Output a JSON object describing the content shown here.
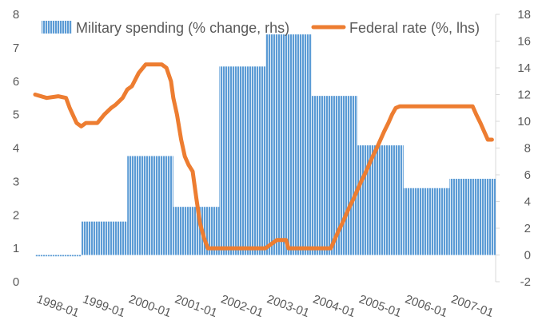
{
  "chart_data": {
    "type": "bar",
    "title": "",
    "colors": {
      "bars": "#5B9BD5",
      "bar_stripe": "#ffffff",
      "line": "#ED7D31",
      "axis_text": "#595959",
      "axis_line": "#D9D9D9"
    },
    "x_labels": [
      "1998-01",
      "1999-01",
      "2000-01",
      "2001-01",
      "2002-01",
      "2003-01",
      "2004-01",
      "2005-01",
      "2006-01",
      "2007-01"
    ],
    "left_axis": {
      "ylim": [
        0,
        8
      ],
      "ticks": [
        "0",
        "1",
        "2",
        "3",
        "4",
        "5",
        "6",
        "7",
        "8"
      ]
    },
    "right_axis": {
      "ylim": [
        -2,
        18
      ],
      "ticks": [
        "-2",
        "0",
        "2",
        "4",
        "6",
        "8",
        "10",
        "12",
        "14",
        "16",
        "18"
      ]
    },
    "legend": [
      {
        "name": "Military spending (% change, rhs)",
        "kind": "bar"
      },
      {
        "name": "Federal rate (%, lhs)",
        "kind": "line"
      }
    ],
    "series": [
      {
        "name": "Military spending (% change, rhs)",
        "axis": "right",
        "type": "bar",
        "years": [
          1998,
          1999,
          2000,
          2001,
          2002,
          2003,
          2004,
          2005,
          2006,
          2007
        ],
        "values": [
          -0.1,
          2.5,
          7.4,
          3.6,
          14.1,
          16.5,
          11.9,
          8.2,
          5.0,
          5.7
        ]
      },
      {
        "name": "Federal rate (%, lhs)",
        "axis": "left",
        "type": "line",
        "x": [
          1998.0,
          1998.25,
          1998.5,
          1998.67,
          1998.75,
          1998.9,
          1999.0,
          1999.1,
          1999.2,
          1999.35,
          1999.5,
          1999.65,
          1999.75,
          1999.9,
          2000.0,
          2000.1,
          2000.25,
          2000.4,
          2000.5,
          2000.58,
          2000.67,
          2000.75,
          2000.85,
          2000.95,
          2001.0,
          2001.08,
          2001.17,
          2001.25,
          2001.33,
          2001.42,
          2001.5,
          2001.58,
          2001.67,
          2001.75,
          2001.83,
          2001.92,
          2002.0,
          2002.5,
          2002.75,
          2002.92,
          2003.0,
          2003.25,
          2003.45,
          2003.5,
          2003.75,
          2004.0,
          2004.25,
          2004.42,
          2004.5,
          2004.58,
          2004.67,
          2004.75,
          2004.83,
          2004.92,
          2005.0,
          2005.08,
          2005.17,
          2005.25,
          2005.33,
          2005.42,
          2005.5,
          2005.58,
          2005.67,
          2005.75,
          2005.83,
          2005.92,
          2006.0,
          2006.08,
          2006.17,
          2006.25,
          2006.33,
          2006.42,
          2006.5,
          2006.75,
          2007.0,
          2007.25,
          2007.5,
          2007.58,
          2007.67,
          2007.75,
          2007.83,
          2007.92
        ],
        "values": [
          5.6,
          5.5,
          5.55,
          5.5,
          5.2,
          4.75,
          4.65,
          4.75,
          4.75,
          4.75,
          5.0,
          5.2,
          5.3,
          5.5,
          5.75,
          5.85,
          6.25,
          6.5,
          6.5,
          6.5,
          6.5,
          6.5,
          6.4,
          6.0,
          5.5,
          5.0,
          4.25,
          3.75,
          3.5,
          3.3,
          2.5,
          1.75,
          1.3,
          1.0,
          1.0,
          1.0,
          1.0,
          1.0,
          1.0,
          1.0,
          1.0,
          1.25,
          1.25,
          1.0,
          1.0,
          1.0,
          1.0,
          1.0,
          1.25,
          1.5,
          1.75,
          2.0,
          2.25,
          2.5,
          2.75,
          3.0,
          3.25,
          3.5,
          3.75,
          4.0,
          4.25,
          4.5,
          4.75,
          5.0,
          5.2,
          5.25,
          5.25,
          5.25,
          5.25,
          5.25,
          5.25,
          5.25,
          5.25,
          5.25,
          5.25,
          5.25,
          5.25,
          5.0,
          4.75,
          4.5,
          4.25,
          4.25
        ]
      }
    ]
  }
}
